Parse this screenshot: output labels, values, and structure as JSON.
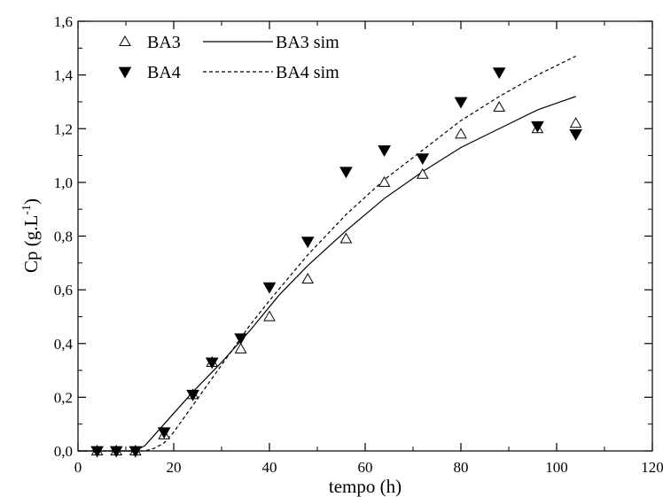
{
  "chart_data": {
    "type": "scatter",
    "xlabel": "tempo (h)",
    "ylabel_main": "Cp (g.L",
    "ylabel_sup": "-1",
    "ylabel_end": ")",
    "xlim": [
      0,
      120
    ],
    "ylim": [
      0,
      1.6
    ],
    "x_ticks": [
      0,
      20,
      40,
      60,
      80,
      100,
      120
    ],
    "x_tick_labels": [
      "0",
      "20",
      "40",
      "60",
      "80",
      "100",
      "120"
    ],
    "y_ticks": [
      0,
      0.2,
      0.4,
      0.6,
      0.8,
      1.0,
      1.2,
      1.4,
      1.6
    ],
    "y_tick_labels": [
      "0,0",
      "0,2",
      "0,4",
      "0,6",
      "0,8",
      "1,0",
      "1,2",
      "1,4",
      "1,6"
    ],
    "grid": false,
    "legend_position": "top-left",
    "series": [
      {
        "name": "BA3",
        "kind": "points",
        "marker": "triangle-open",
        "x": [
          4,
          8,
          12,
          18,
          24,
          28,
          34,
          40,
          48,
          56,
          64,
          72,
          80,
          88,
          96,
          104
        ],
        "y": [
          0.0,
          0.0,
          0.0,
          0.06,
          0.21,
          0.33,
          0.38,
          0.5,
          0.64,
          0.79,
          1.0,
          1.03,
          1.18,
          1.28,
          1.2,
          1.22
        ]
      },
      {
        "name": "BA3 sim",
        "kind": "line",
        "dash": "solid",
        "x": [
          0,
          12,
          14,
          18,
          24,
          30,
          36,
          42,
          48,
          56,
          64,
          72,
          80,
          88,
          96,
          104
        ],
        "y": [
          0.0,
          0.0,
          0.02,
          0.1,
          0.22,
          0.33,
          0.45,
          0.58,
          0.69,
          0.82,
          0.94,
          1.04,
          1.13,
          1.2,
          1.27,
          1.32
        ]
      },
      {
        "name": "BA4",
        "kind": "points",
        "marker": "triangle-down-filled",
        "x": [
          4,
          8,
          12,
          18,
          24,
          28,
          34,
          40,
          48,
          56,
          64,
          72,
          80,
          88,
          96,
          104
        ],
        "y": [
          0.0,
          0.0,
          0.0,
          0.07,
          0.21,
          0.33,
          0.42,
          0.61,
          0.78,
          1.04,
          1.12,
          1.09,
          1.3,
          1.41,
          1.21,
          1.18
        ]
      },
      {
        "name": "BA4 sim",
        "kind": "line",
        "dash": "dashed",
        "x": [
          0,
          14,
          16,
          18,
          20,
          24,
          28,
          32,
          36,
          40,
          48,
          56,
          64,
          72,
          80,
          88,
          96,
          104
        ],
        "y": [
          0.0,
          0.0,
          0.01,
          0.03,
          0.07,
          0.17,
          0.27,
          0.37,
          0.47,
          0.56,
          0.73,
          0.88,
          1.01,
          1.12,
          1.23,
          1.32,
          1.4,
          1.47
        ]
      }
    ]
  }
}
